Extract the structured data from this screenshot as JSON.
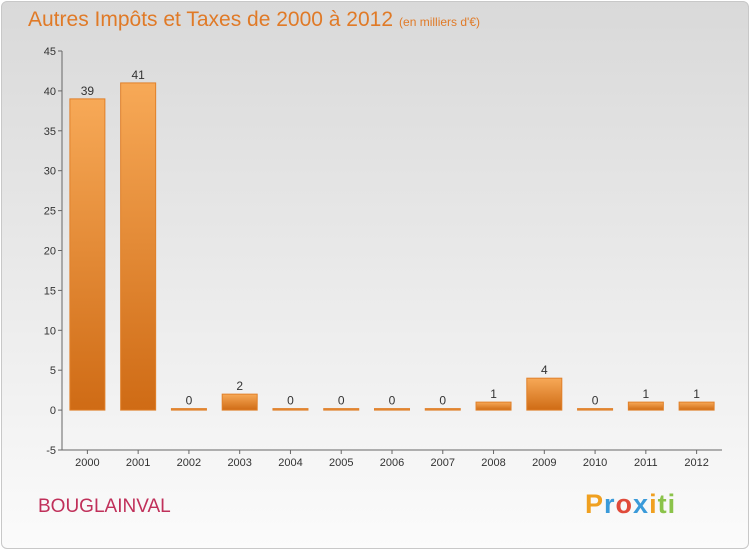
{
  "chart_data": {
    "type": "bar",
    "title": "Autres Impôts et Taxes de 2000 à 2012",
    "subtitle": "(en milliers d'€)",
    "xlabel": "",
    "ylabel": "",
    "categories": [
      "2000",
      "2001",
      "2002",
      "2003",
      "2004",
      "2005",
      "2006",
      "2007",
      "2008",
      "2009",
      "2010",
      "2011",
      "2012"
    ],
    "values": [
      39,
      41,
      0,
      2,
      0,
      0,
      0,
      0,
      1,
      4,
      0,
      1,
      1
    ],
    "ylim": [
      -5,
      45
    ],
    "yticks": [
      -5,
      0,
      5,
      10,
      15,
      20,
      25,
      30,
      35,
      40,
      45
    ],
    "grid": false,
    "bar_color": "#e0802a"
  },
  "place_name": "BOUGLAINVAL",
  "logo": [
    "P",
    "r",
    "o",
    "x",
    "i",
    "ti"
  ]
}
